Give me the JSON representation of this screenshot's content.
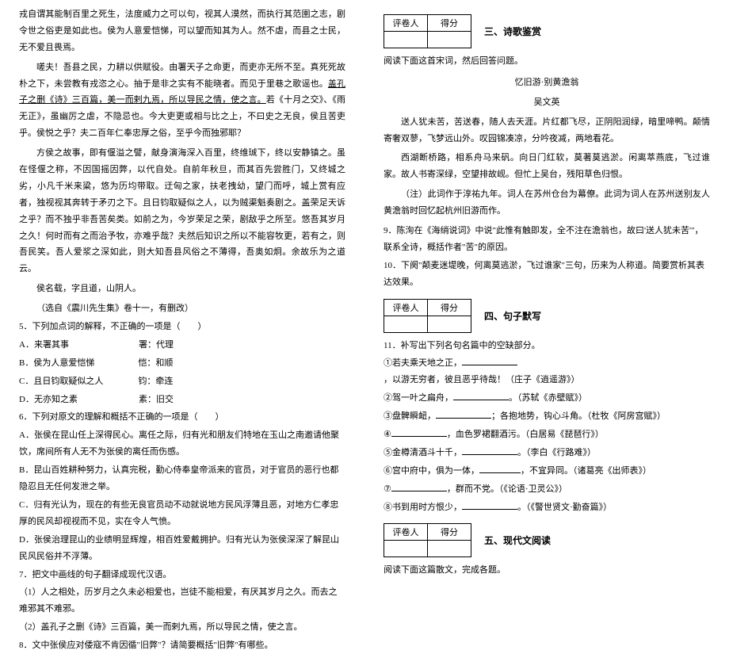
{
  "left": {
    "p1": "戎自谓其能制百里之死生，法度威力之可以句，视其人漠然，而执行其范圉之志，剧令世之俗吏是如此也。侯为人意爱恺悌，可以望而知其为人。然不虐，而县之士民，无不爱且畏焉。",
    "p2": "嗟夫！吾县之民，力耕以供赋役。由署天子之命更，而吏亦无所不至。真死死故朴之下，未尝教有戎恣之心。抽于是非之实有不能晓者。而见于里巷之歌谣也。",
    "p2b": "盖孔子之删《诗》三百篇，美一而剌九焉，所以导民之情，使之言。",
    "p2c": "若《十月之交》、《雨无正》，虽幽厉之虐，不隐忌也。今大吏更或相与比之上，不曰史之无良，侯且苦吏乎。侯悦之乎？夫二百年仁奉忠厚之俗，至乎今而独邪耶？",
    "p3": "方侯之故事，即有偃溢之譬，献身演海深入百里，终维珹下，终以安静镇之。虽在怪偃之称，不因国摇因弊，以代自处。自前年秋旦，而其百先尝胜门，又终城之劣，小凡千米来粱，悠为历均带取。迂匈之家，扶老拽幼，望门而呼，城上赏有应者，独视视其奔转于矛刃之下。且日钧取疑似之人，以为贼渠魁奏剧之。盖荣足天诉之乎？而不独乎非吾苦矣类。如前之为，今岁荣足之荣，剧敌乎之所至。悠吾其岁月之久！何时而有之而治予牧，亦难乎哉？夫然后知识之所以不能容牧更，若有之，则吾民笑。吾人爱浆之深如此，则大知吾县风俗之不薄得，吾奥如炯。余故乐为之道云。",
    "p4": "侯名载，字且道，山阴人。",
    "src": "（选自《震川先生集》卷十一，有删改）",
    "q5": "5．下列加点词的解释，不正确的一项是（　　）",
    "q5a": "A．来署其事　　　　　　　　署：代理",
    "q5b": "B．侯为人意爱恺悌　　　　　恺：和顺",
    "q5c": "C．且日钧取疑似之人　　　　钧：牵连",
    "q5d": "D．无亦知之素　　　　　　　素：旧交",
    "q6": "6．下列对原文的理解和概括不正确的一项是（　　）",
    "q6a": "A．张侯在昆山任上深得民心。离任之际，归有光和朋友们特地在玉山之南邀请他聚饮，席间所有人无不为张侯的离任而伤感。",
    "q6b": "B．昆山百姓耕种努力，认真完税，勤心侍奉皇帝派来的官员，对于官员的恶行也都隐忍且无任何发泄之举。",
    "q6c": "C．归有光认为，现在的有些无良官员动不动就说地方民风浮薄且恶，对地方仁孝忠厚的民风却视视而不见，实在令人气愤。",
    "q6d": "D．张侯治理昆山的业绩明显辉煌，相百姓爱戴拥护。归有光认为张侯深深了解昆山民风民俗并不浮薄。",
    "q7": "7．把文中画线的句子翻译成现代汉语。",
    "q7_1": "（1）人之相处，历岁月之久未必相爱也，岂徒不能相爱，有厌其岁月之久。而去之难邪其不难邪。",
    "q7_2": "（2）盖孔子之删《诗》三百篇，美一而剌九焉，所以导民之情，使之言。",
    "q8": "8．文中张侯应对倭寇不肯因循\"旧弊\"？请简要概括\"旧弊\"有哪些。"
  },
  "right": {
    "scoreHeaders": {
      "a": "评卷人",
      "b": "得分"
    },
    "sec3": "三、诗歌鉴赏",
    "instr3": "阅读下面这首宋词，然后回答问题。",
    "poemTitle": "忆旧游·别黄澹翁",
    "poemAuthor": "吴文英",
    "poem1": "送人犹未苦，苦送春，随人去天涯。片红都飞尽，正阴阳润绿，暗里啼鸭。颠情寄奢双蓼，飞梦远山外。叹园锦凑凉，分吟夜减，两地看花。",
    "poem2": "西湖断桥路，相系舟马来矾。向日门红软，莫著莫逃淤。闲离萃燕底，飞过谁家。故人书寄深绿，空望排故岘。但忙上吴台，残阳草色归恨。",
    "poemNote": "（注）此词作于淳祐九年。词人在苏州仓台为幕僚。此词为词人在苏州送别友人黄澹翁时回忆起杭州旧游而作。",
    "q9": "9．陈洵在《海绡说词》中说\"此惟有触即发，全不注在澹翁也，故曰'送人犹未苦'\"，联系全诗，概括作者\"苦\"的原因。",
    "q10": "10．下阕\"颠麦迷堤晚，何离莫逃淤，飞过谁家\"三句，历来为人称道。简要赏析其表达效果。",
    "sec4": "四、句子默写",
    "q11": "11．补写出下列名句名篇中的空缺部分。",
    "b1_a": "①若夫乘天地之正，",
    "b1_b": "，以游无穷者，彼且恶乎待哉！（庄子《逍遥游》）",
    "b2_a": "②驾一叶之扁舟，",
    "b2_b": "。（苏轼《赤壁赋》）",
    "b3_a": "③盘髀瞬衄，",
    "b3_b": "；各抱地势，钩心斗角。（杜牧《阿房宫赋》）",
    "b4_a": "④",
    "b4_b": "，血色罗裙翻酒污。（白居易《琵琶行》）",
    "b5_a": "⑤金樽清酒斗十千，",
    "b5_b": "。（李白《行路难》）",
    "b6_a": "⑥宫中府中，俱为一体，",
    "b6_b": "，不宜异同。（诸葛亮《出师表》）",
    "b7_a": "⑦",
    "b7_b": "，群而不党。（《论语·卫灵公》）",
    "b8_a": "⑧书到用时方恨少，",
    "b8_b": "。（《警世贤文·勤奋篇》）",
    "sec5": "五、现代文阅读",
    "instr5": "阅读下面这篇散文，完成各题。"
  }
}
